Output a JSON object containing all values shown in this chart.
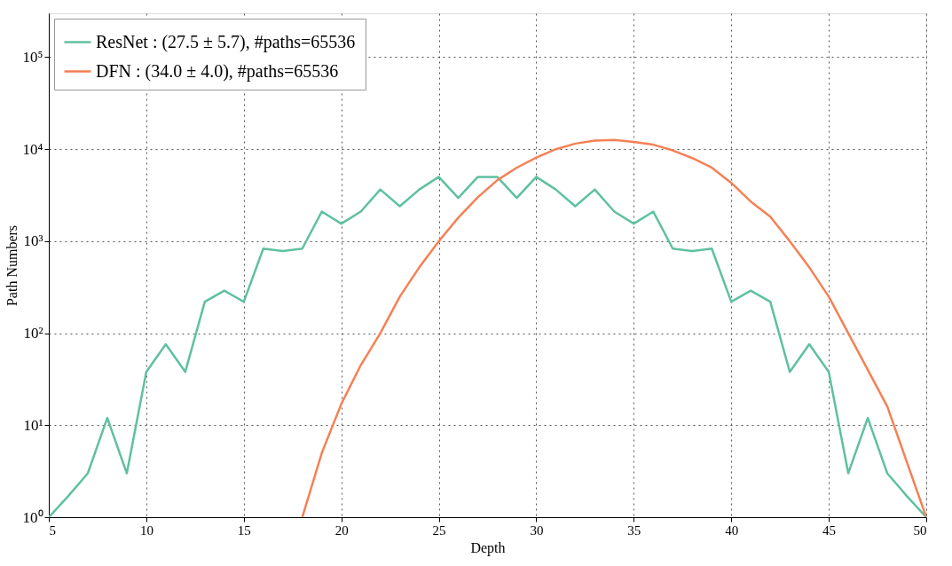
{
  "chart_data": {
    "type": "line",
    "xlabel": "Depth",
    "ylabel": "Path Numbers",
    "log": "y",
    "xlim": [
      5,
      50
    ],
    "xticks": [
      5,
      10,
      15,
      20,
      25,
      30,
      35,
      40,
      45,
      50
    ],
    "ylim": [
      1,
      300000
    ],
    "yticks": [
      {
        "value": 1,
        "label": "10⁰"
      },
      {
        "value": 10,
        "label": "10¹"
      },
      {
        "value": 100,
        "label": "10²"
      },
      {
        "value": 1000,
        "label": "10³"
      },
      {
        "value": 10000,
        "label": "10⁴"
      },
      {
        "value": 100000,
        "label": "10⁵"
      }
    ],
    "grid": true,
    "legend": "top left",
    "line_style": "solid",
    "marker": "none",
    "series": [
      {
        "name": "ResNet : (27.5 ± 5.7), #paths=65536",
        "color": "#5fc0a0",
        "x": [
          5,
          6,
          7,
          8,
          9,
          10,
          11,
          12,
          13,
          14,
          15,
          16,
          17,
          18,
          19,
          20,
          21,
          22,
          23,
          24,
          25,
          26,
          27,
          28,
          29,
          30,
          31,
          32,
          33,
          34,
          35,
          36,
          37,
          38,
          39,
          40,
          41,
          42,
          43,
          44,
          45,
          46,
          47,
          48,
          49,
          50
        ],
        "values": [
          1,
          1.7,
          3,
          12,
          3,
          38,
          76,
          38,
          220,
          290,
          220,
          830,
          780,
          830,
          2100,
          1550,
          2100,
          3650,
          2400,
          3650,
          5000,
          2950,
          5000,
          5000,
          2950,
          5000,
          3650,
          2400,
          3650,
          2100,
          1550,
          2100,
          830,
          780,
          830,
          220,
          290,
          220,
          38,
          76,
          38,
          3,
          12,
          3,
          1.7,
          1
        ]
      },
      {
        "name": "DFN     : (34.0 ± 4.0), #paths=65536",
        "color": "#f58055",
        "x": [
          18,
          19,
          20,
          21,
          22,
          23,
          24,
          25,
          26,
          27,
          28,
          29,
          30,
          31,
          32,
          33,
          34,
          35,
          36,
          37,
          38,
          39,
          40,
          41,
          42,
          43,
          44,
          45,
          46,
          47,
          48,
          49,
          50
        ],
        "values": [
          1,
          5,
          17,
          45,
          100,
          250,
          520,
          1000,
          1800,
          3000,
          4600,
          6300,
          8100,
          10000,
          11500,
          12400,
          12600,
          12000,
          11200,
          9700,
          8000,
          6300,
          4300,
          2700,
          1850,
          1000,
          520,
          250,
          100,
          40,
          16,
          4,
          1
        ]
      }
    ]
  }
}
